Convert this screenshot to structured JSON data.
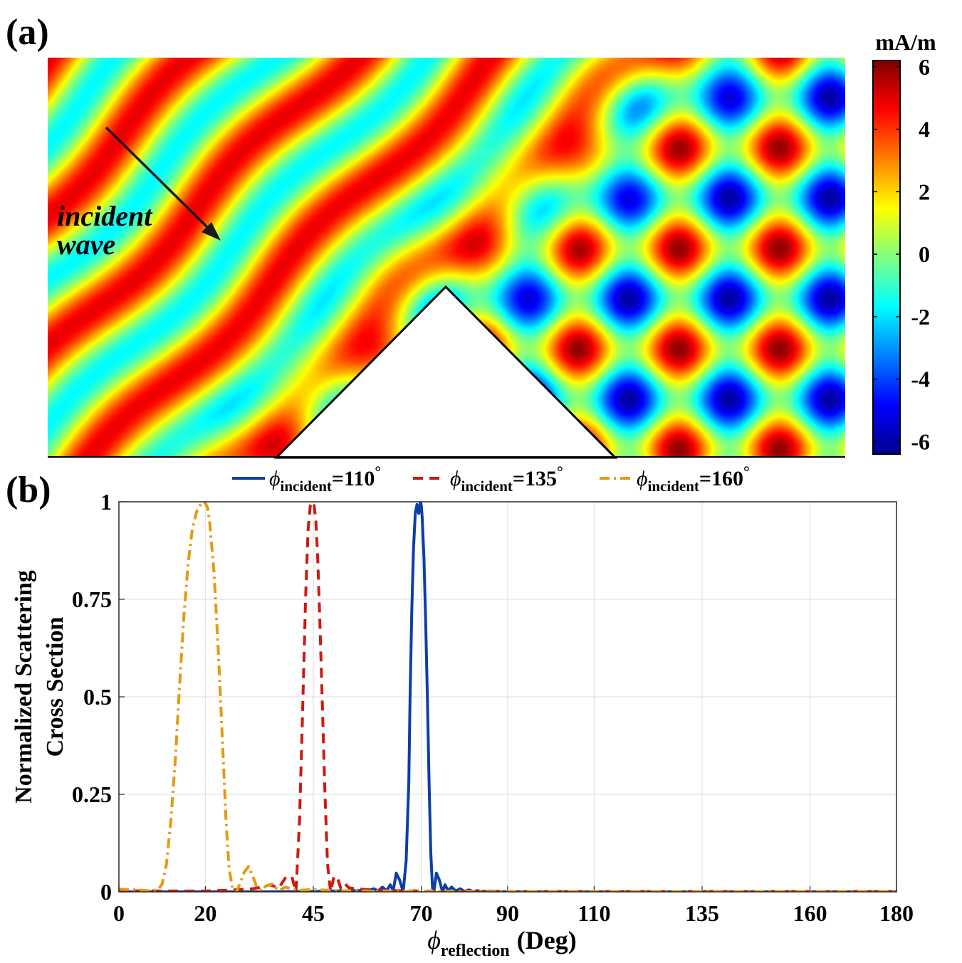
{
  "panel_a": {
    "label": "(a)",
    "annotation_line1": "incident",
    "annotation_line2": "wave",
    "colorbar": {
      "unit": "mA/m",
      "min": -6.4,
      "max": 6.2,
      "ticks": [
        6,
        4,
        2,
        0,
        -2,
        -4,
        -6
      ],
      "tick_labels": [
        "6",
        "4",
        "2",
        "0",
        "-2",
        "-4",
        "-6"
      ],
      "colormap": "jet"
    },
    "field": {
      "amplitude_mA_per_m": 6,
      "pattern": "standing wave interference pattern of an obliquely incident plane wave scattered by a triangular wedge"
    }
  },
  "panel_b": {
    "label": "(b)",
    "chart_data": {
      "type": "line",
      "xlabel_symbol": "ϕ",
      "xlabel_subscript": "reflection",
      "xlabel_unit": "(Deg)",
      "ylabel_line1": "Normalized Scattering",
      "ylabel_line2": "Cross Section",
      "xlim": [
        0,
        180
      ],
      "ylim": [
        0,
        1
      ],
      "xticks": [
        0,
        20,
        45,
        70,
        90,
        110,
        135,
        160,
        180
      ],
      "yticks": [
        0,
        0.25,
        0.5,
        0.75,
        1
      ],
      "ytick_labels": [
        "0",
        "0.25",
        "0.5",
        "0.75",
        "1"
      ],
      "grid": true,
      "legend_position": "top",
      "series": [
        {
          "name_symbol": "ϕ",
          "name_subscript": "incident",
          "name_value": "=110",
          "name_degree": "°",
          "color": "#0B3FA5",
          "dash": "solid",
          "x": [
            0,
            30,
            45,
            50,
            55,
            58,
            59,
            60,
            61,
            62,
            62.8,
            63.5,
            64.2,
            65,
            65.8,
            66.5,
            67.1,
            67.4,
            67.8,
            68.2,
            68.6,
            69,
            69.4,
            69.8,
            70,
            70.2,
            70.6,
            71,
            71.4,
            71.8,
            72.2,
            72.6,
            72.9,
            73.5,
            74.2,
            74.9,
            75.5,
            76.2,
            77,
            78,
            79,
            80,
            81,
            82,
            83,
            84,
            86,
            88,
            90,
            95,
            180
          ],
          "y": [
            0,
            0,
            0.001,
            0.002,
            0.003,
            0.004,
            0.008,
            0.002,
            0.012,
            0.003,
            0.018,
            0.003,
            0.048,
            0.03,
            0.0,
            0.08,
            0.28,
            0.5,
            0.72,
            0.88,
            0.97,
            0.993,
            0.97,
            1.0,
            0.99,
            0.96,
            0.86,
            0.7,
            0.5,
            0.28,
            0.1,
            0.01,
            0.0,
            0.048,
            0.03,
            0.0,
            0.018,
            0.003,
            0.012,
            0.002,
            0.008,
            0.001,
            0.005,
            0.001,
            0.003,
            0.001,
            0.002,
            0.001,
            0,
            0,
            0
          ]
        },
        {
          "name_symbol": "ϕ",
          "name_subscript": "incident",
          "name_value": "=135",
          "name_degree": "°",
          "color": "#CC1A12",
          "dash": "dashed",
          "x": [
            0,
            10,
            20,
            25,
            28,
            31,
            33,
            35,
            37,
            38.5,
            40,
            41,
            41.8,
            42.5,
            43.2,
            43.8,
            44.3,
            44.8,
            45.2,
            45.6,
            46,
            46.5,
            47.1,
            47.7,
            48.3,
            49,
            49.8,
            50.6,
            51.4,
            52.3,
            53.3,
            55,
            57,
            60,
            65,
            70,
            90,
            180
          ],
          "y": [
            0.003,
            0.002,
            0.002,
            0.004,
            0.006,
            0.008,
            0.012,
            0.018,
            0.01,
            0.035,
            0.04,
            0.0,
            0.18,
            0.45,
            0.75,
            0.93,
            0.99,
            1.0,
            0.99,
            0.95,
            0.86,
            0.7,
            0.48,
            0.25,
            0.07,
            0.0,
            0.04,
            0.035,
            0.008,
            0.02,
            0.01,
            0.008,
            0.006,
            0.004,
            0.003,
            0.002,
            0.001,
            0.001
          ]
        },
        {
          "name_symbol": "ϕ",
          "name_subscript": "incident",
          "name_value": "=160",
          "name_degree": "°",
          "color": "#E59A10",
          "dash": "dashdot",
          "x": [
            0,
            4,
            7,
            9,
            10,
            11,
            12,
            13,
            14,
            15,
            16,
            17,
            18,
            19,
            19.5,
            20,
            20.5,
            21,
            22,
            23,
            24,
            24.8,
            25.5,
            26.3,
            27.2,
            28,
            29,
            30,
            31,
            32,
            33,
            34,
            35.5,
            37,
            38.5,
            40,
            42,
            45,
            50,
            60,
            80,
            180
          ],
          "y": [
            0.007,
            0.005,
            0.003,
            0.005,
            0.02,
            0.07,
            0.18,
            0.33,
            0.52,
            0.7,
            0.84,
            0.93,
            0.975,
            0.995,
            1.0,
            0.997,
            0.985,
            0.95,
            0.82,
            0.62,
            0.38,
            0.18,
            0.06,
            0.008,
            0.0,
            0.02,
            0.05,
            0.065,
            0.04,
            0.01,
            0.003,
            0.015,
            0.02,
            0.003,
            0.012,
            0.008,
            0.004,
            0.006,
            0.003,
            0.002,
            0.001,
            0.001
          ]
        }
      ]
    }
  }
}
